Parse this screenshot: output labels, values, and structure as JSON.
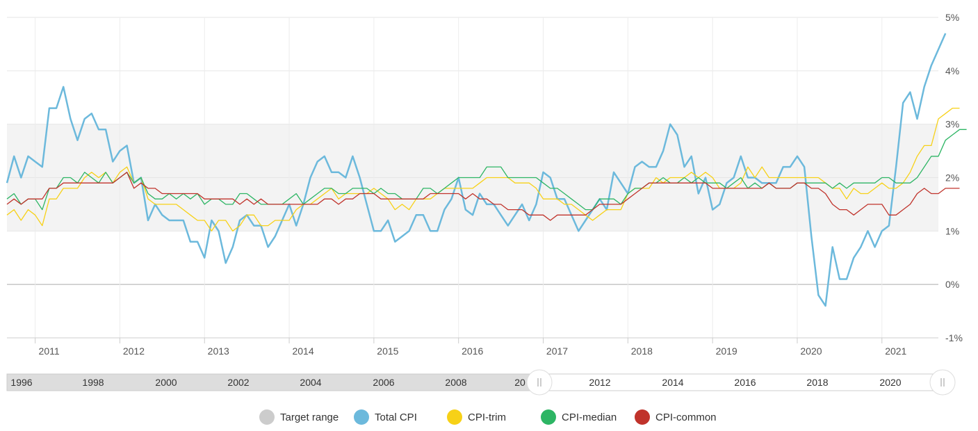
{
  "chart_data": {
    "type": "line",
    "y_ticks": [
      {
        "value": 5,
        "label": "5%"
      },
      {
        "value": 4,
        "label": "4%"
      },
      {
        "value": 3,
        "label": "3%"
      },
      {
        "value": 2,
        "label": "2%"
      },
      {
        "value": 1,
        "label": "1%"
      },
      {
        "value": 0,
        "label": "0%"
      },
      {
        "value": -1,
        "label": "-1%"
      }
    ],
    "ylim": [
      -1,
      5
    ],
    "xlim": [
      "2010-09",
      "2021-09"
    ],
    "x_ticks": [
      "2011",
      "2012",
      "2013",
      "2014",
      "2015",
      "2016",
      "2017",
      "2018",
      "2019",
      "2020",
      "2021"
    ],
    "target_range": [
      1,
      3
    ],
    "grid": "horizontal",
    "legend_position": "bottom",
    "navigator": {
      "labels": [
        "1996",
        "1998",
        "2000",
        "2002",
        "2004",
        "2006",
        "2008",
        "20",
        "2012",
        "2014",
        "2016",
        "2018",
        "2020"
      ],
      "selected": [
        "2010",
        "2021"
      ]
    },
    "legend": [
      {
        "name": "Target range",
        "color": "#cccccc"
      },
      {
        "name": "Total CPI",
        "color": "#6cb9dc"
      },
      {
        "name": "CPI-trim",
        "color": "#f7d117"
      },
      {
        "name": "CPI-median",
        "color": "#2db564"
      },
      {
        "name": "CPI-common",
        "color": "#c0332b"
      }
    ],
    "start_month": "2010-09",
    "series": [
      {
        "name": "Total CPI",
        "color": "#6cb9dc",
        "values": [
          1.9,
          2.4,
          2.0,
          2.4,
          2.3,
          2.2,
          3.3,
          3.3,
          3.7,
          3.1,
          2.7,
          3.1,
          3.2,
          2.9,
          2.9,
          2.3,
          2.5,
          2.6,
          1.9,
          2.0,
          1.2,
          1.5,
          1.3,
          1.2,
          1.2,
          1.2,
          0.8,
          0.8,
          0.5,
          1.2,
          1.0,
          0.4,
          0.7,
          1.2,
          1.3,
          1.1,
          1.1,
          0.7,
          0.9,
          1.2,
          1.5,
          1.1,
          1.5,
          2.0,
          2.3,
          2.4,
          2.1,
          2.1,
          2.0,
          2.4,
          2.0,
          1.5,
          1.0,
          1.0,
          1.2,
          0.8,
          0.9,
          1.0,
          1.3,
          1.3,
          1.0,
          1.0,
          1.4,
          1.6,
          2.0,
          1.4,
          1.3,
          1.7,
          1.5,
          1.5,
          1.3,
          1.1,
          1.3,
          1.5,
          1.2,
          1.5,
          2.1,
          2.0,
          1.6,
          1.6,
          1.3,
          1.0,
          1.2,
          1.4,
          1.6,
          1.4,
          2.1,
          1.9,
          1.7,
          2.2,
          2.3,
          2.2,
          2.2,
          2.5,
          3.0,
          2.8,
          2.2,
          2.4,
          1.7,
          2.0,
          1.4,
          1.5,
          1.9,
          2.0,
          2.4,
          2.0,
          2.0,
          1.9,
          1.9,
          1.9,
          2.2,
          2.2,
          2.4,
          2.2,
          0.9,
          -0.2,
          -0.4,
          0.7,
          0.1,
          0.1,
          0.5,
          0.7,
          1.0,
          0.7,
          1.0,
          1.1,
          2.2,
          3.4,
          3.6,
          3.1,
          3.7,
          4.1,
          4.4,
          4.7
        ]
      },
      {
        "name": "CPI-trim",
        "color": "#f7d117",
        "values": [
          1.3,
          1.4,
          1.2,
          1.4,
          1.3,
          1.1,
          1.6,
          1.6,
          1.8,
          1.8,
          1.8,
          2.0,
          2.1,
          2.0,
          2.1,
          1.9,
          2.1,
          2.2,
          1.9,
          2.0,
          1.6,
          1.5,
          1.5,
          1.5,
          1.5,
          1.4,
          1.3,
          1.2,
          1.2,
          1.0,
          1.2,
          1.2,
          1.0,
          1.1,
          1.3,
          1.3,
          1.1,
          1.1,
          1.2,
          1.2,
          1.2,
          1.4,
          1.5,
          1.5,
          1.6,
          1.7,
          1.8,
          1.6,
          1.7,
          1.7,
          1.7,
          1.7,
          1.8,
          1.7,
          1.6,
          1.4,
          1.5,
          1.4,
          1.6,
          1.6,
          1.6,
          1.7,
          1.8,
          1.8,
          1.8,
          1.8,
          1.8,
          1.9,
          2.0,
          2.0,
          2.0,
          2.0,
          1.9,
          1.9,
          1.9,
          1.8,
          1.6,
          1.6,
          1.6,
          1.5,
          1.5,
          1.4,
          1.3,
          1.2,
          1.3,
          1.4,
          1.4,
          1.4,
          1.7,
          1.8,
          1.8,
          1.8,
          2.0,
          1.9,
          2.0,
          2.0,
          2.0,
          2.1,
          2.0,
          2.1,
          2.0,
          1.8,
          1.8,
          1.8,
          1.9,
          2.2,
          2.0,
          2.2,
          2.0,
          2.0,
          2.0,
          2.0,
          2.0,
          2.0,
          2.0,
          2.0,
          1.9,
          1.8,
          1.8,
          1.6,
          1.8,
          1.7,
          1.7,
          1.8,
          1.9,
          1.8,
          1.8,
          1.9,
          2.1,
          2.4,
          2.6,
          2.6,
          3.1,
          3.2,
          3.3,
          3.3
        ]
      },
      {
        "name": "CPI-median",
        "color": "#2db564",
        "values": [
          1.6,
          1.7,
          1.5,
          1.6,
          1.6,
          1.4,
          1.8,
          1.8,
          2.0,
          2.0,
          1.9,
          2.1,
          2.0,
          1.9,
          2.1,
          1.9,
          2.0,
          2.1,
          1.9,
          2.0,
          1.7,
          1.6,
          1.6,
          1.7,
          1.6,
          1.7,
          1.6,
          1.7,
          1.5,
          1.6,
          1.6,
          1.5,
          1.5,
          1.7,
          1.7,
          1.6,
          1.5,
          1.5,
          1.5,
          1.5,
          1.6,
          1.7,
          1.5,
          1.6,
          1.7,
          1.8,
          1.8,
          1.7,
          1.7,
          1.8,
          1.8,
          1.8,
          1.7,
          1.8,
          1.7,
          1.7,
          1.6,
          1.6,
          1.6,
          1.8,
          1.8,
          1.7,
          1.8,
          1.9,
          2.0,
          2.0,
          2.0,
          2.0,
          2.2,
          2.2,
          2.2,
          2.0,
          2.0,
          2.0,
          2.0,
          2.0,
          1.9,
          1.8,
          1.8,
          1.7,
          1.6,
          1.5,
          1.4,
          1.4,
          1.6,
          1.6,
          1.6,
          1.5,
          1.7,
          1.8,
          1.8,
          1.9,
          1.9,
          2.0,
          1.9,
          1.9,
          2.0,
          1.9,
          2.0,
          1.9,
          1.9,
          1.9,
          1.8,
          1.9,
          2.0,
          1.8,
          1.9,
          1.8,
          1.9,
          1.8,
          1.8,
          1.8,
          1.9,
          1.9,
          1.9,
          1.9,
          1.9,
          1.8,
          1.9,
          1.8,
          1.9,
          1.9,
          1.9,
          1.9,
          2.0,
          2.0,
          1.9,
          1.9,
          1.9,
          2.0,
          2.2,
          2.4,
          2.4,
          2.7,
          2.8,
          2.9,
          2.9
        ]
      },
      {
        "name": "CPI-common",
        "color": "#c0332b",
        "values": [
          1.5,
          1.6,
          1.5,
          1.6,
          1.6,
          1.6,
          1.8,
          1.8,
          1.9,
          1.9,
          1.9,
          1.9,
          1.9,
          1.9,
          1.9,
          1.9,
          2.0,
          2.1,
          1.8,
          1.9,
          1.8,
          1.8,
          1.7,
          1.7,
          1.7,
          1.7,
          1.7,
          1.7,
          1.6,
          1.6,
          1.6,
          1.6,
          1.6,
          1.5,
          1.6,
          1.5,
          1.6,
          1.5,
          1.5,
          1.5,
          1.5,
          1.5,
          1.5,
          1.5,
          1.5,
          1.6,
          1.6,
          1.5,
          1.6,
          1.6,
          1.7,
          1.7,
          1.7,
          1.6,
          1.6,
          1.6,
          1.6,
          1.6,
          1.6,
          1.6,
          1.7,
          1.7,
          1.7,
          1.7,
          1.7,
          1.6,
          1.7,
          1.6,
          1.6,
          1.5,
          1.5,
          1.4,
          1.4,
          1.4,
          1.3,
          1.3,
          1.3,
          1.2,
          1.3,
          1.3,
          1.3,
          1.3,
          1.3,
          1.4,
          1.5,
          1.5,
          1.5,
          1.5,
          1.6,
          1.7,
          1.8,
          1.9,
          1.9,
          1.9,
          1.9,
          1.9,
          1.9,
          1.9,
          1.9,
          1.9,
          1.8,
          1.8,
          1.8,
          1.8,
          1.8,
          1.8,
          1.8,
          1.8,
          1.9,
          1.8,
          1.8,
          1.8,
          1.9,
          1.9,
          1.8,
          1.8,
          1.7,
          1.5,
          1.4,
          1.4,
          1.3,
          1.4,
          1.5,
          1.5,
          1.5,
          1.3,
          1.3,
          1.4,
          1.5,
          1.7,
          1.8,
          1.7,
          1.7,
          1.8,
          1.8,
          1.8
        ]
      }
    ]
  }
}
